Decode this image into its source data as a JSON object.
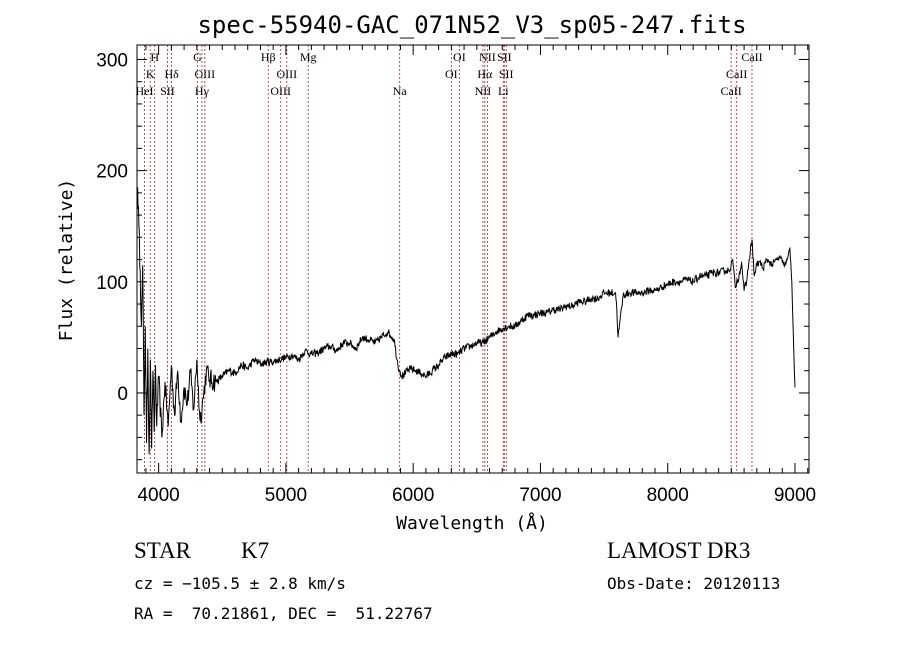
{
  "chart_data": {
    "type": "line",
    "title": "spec-55940-GAC_071N52_V3_sp05-247.fits",
    "xlabel": "Wavelength (Å)",
    "ylabel": "Flux (relative)",
    "xlim": [
      3830,
      9110
    ],
    "ylim": [
      -72,
      313
    ],
    "x_ticks": [
      4000,
      5000,
      6000,
      7000,
      8000,
      9000
    ],
    "y_ticks": [
      0,
      100,
      200,
      300
    ],
    "series": [
      {
        "name": "flux",
        "x": [
          3835,
          3845,
          3855,
          3865,
          3875,
          3885,
          3895,
          3905,
          3915,
          3925,
          3935,
          3945,
          3955,
          3965,
          3975,
          3985,
          4000,
          4025,
          4050,
          4075,
          4100,
          4125,
          4150,
          4175,
          4200,
          4225,
          4250,
          4275,
          4300,
          4325,
          4350,
          4375,
          4400,
          4450,
          4500,
          4550,
          4600,
          4650,
          4700,
          4750,
          4800,
          4850,
          4900,
          4950,
          5000,
          5050,
          5100,
          5150,
          5200,
          5250,
          5300,
          5350,
          5400,
          5450,
          5500,
          5550,
          5600,
          5650,
          5700,
          5750,
          5800,
          5850,
          5880,
          5895,
          5910,
          5940,
          5980,
          6020,
          6060,
          6100,
          6150,
          6200,
          6250,
          6300,
          6350,
          6400,
          6450,
          6500,
          6550,
          6600,
          6650,
          6700,
          6750,
          6800,
          6850,
          6900,
          6950,
          7000,
          7050,
          7100,
          7150,
          7200,
          7250,
          7300,
          7350,
          7400,
          7450,
          7500,
          7550,
          7590,
          7600,
          7610,
          7650,
          7700,
          7750,
          7800,
          7850,
          7900,
          7950,
          8000,
          8050,
          8100,
          8150,
          8200,
          8250,
          8300,
          8350,
          8400,
          8450,
          8480,
          8498,
          8510,
          8530,
          8542,
          8560,
          8580,
          8600,
          8620,
          8640,
          8662,
          8680,
          8700,
          8720,
          8750,
          8780,
          8800,
          8820,
          8840,
          8860,
          8880,
          8900,
          8920,
          8940,
          8960,
          8975,
          8985,
          8995,
          9000
        ],
        "y": [
          185,
          150,
          110,
          60,
          115,
          -20,
          60,
          -45,
          40,
          -55,
          30,
          -50,
          20,
          -35,
          25,
          -30,
          15,
          -40,
          10,
          -30,
          25,
          -20,
          20,
          -25,
          5,
          -10,
          18,
          -15,
          30,
          -25,
          -5,
          20,
          12,
          10,
          15,
          20,
          18,
          25,
          22,
          30,
          26,
          28,
          28,
          30,
          32,
          34,
          30,
          38,
          35,
          36,
          40,
          42,
          38,
          45,
          45,
          40,
          50,
          48,
          45,
          50,
          55,
          48,
          25,
          20,
          15,
          18,
          22,
          20,
          18,
          15,
          20,
          25,
          32,
          35,
          35,
          40,
          42,
          45,
          45,
          50,
          55,
          58,
          60,
          60,
          65,
          70,
          70,
          72,
          72,
          75,
          75,
          78,
          78,
          82,
          82,
          85,
          85,
          90,
          90,
          90,
          75,
          50,
          88,
          90,
          90,
          90,
          92,
          92,
          95,
          98,
          100,
          100,
          102,
          100,
          105,
          105,
          108,
          108,
          110,
          110,
          115,
          120,
          95,
          100,
          105,
          118,
          92,
          100,
          120,
          138,
          105,
          115,
          118,
          112,
          120,
          118,
          115,
          118,
          120,
          122,
          118,
          115,
          120,
          130,
          100,
          60,
          20,
          5
        ]
      }
    ],
    "spectral_lines": [
      {
        "label": "H",
        "wavelength": 3969,
        "row": 1
      },
      {
        "label": "K",
        "wavelength": 3934,
        "row": 2
      },
      {
        "label": "HeI",
        "wavelength": 3889,
        "row": 3
      },
      {
        "label": "SII",
        "wavelength": 4069,
        "row": 3
      },
      {
        "label": "Hδ",
        "wavelength": 4102,
        "row": 2
      },
      {
        "label": "G",
        "wavelength": 4305,
        "row": 1
      },
      {
        "label": "OIII",
        "wavelength": 4363,
        "row": 2
      },
      {
        "label": "Hγ",
        "wavelength": 4340,
        "row": 3
      },
      {
        "label": "Hβ",
        "wavelength": 4861,
        "row": 1
      },
      {
        "label": "OIII",
        "wavelength": 5007,
        "row": 2
      },
      {
        "label": "OIII",
        "wavelength": 4959,
        "row": 3
      },
      {
        "label": "Mg",
        "wavelength": 5175,
        "row": 1
      },
      {
        "label": "Na",
        "wavelength": 5894,
        "row": 3
      },
      {
        "label": "OI",
        "wavelength": 6363,
        "row": 1
      },
      {
        "label": "OI",
        "wavelength": 6300,
        "row": 2
      },
      {
        "label": "NII",
        "wavelength": 6583,
        "row": 1
      },
      {
        "label": "SII",
        "wavelength": 6716,
        "row": 1
      },
      {
        "label": "Hα",
        "wavelength": 6563,
        "row": 2
      },
      {
        "label": "SII",
        "wavelength": 6731,
        "row": 2
      },
      {
        "label": "NII",
        "wavelength": 6548,
        "row": 3
      },
      {
        "label": "Li",
        "wavelength": 6708,
        "row": 3
      },
      {
        "label": "CaII",
        "wavelength": 8662,
        "row": 1
      },
      {
        "label": "CaII",
        "wavelength": 8542,
        "row": 2
      },
      {
        "label": "CaII",
        "wavelength": 8498,
        "row": 3
      }
    ]
  },
  "info": {
    "object_class": "STAR",
    "subclass": "K7",
    "cz": "cz = −105.5 ± 2.8 km/s",
    "coords": "RA =  70.21861, DEC =  51.22767",
    "survey": "LAMOST DR3",
    "obs_date": "Obs-Date: 20120113"
  },
  "colors": {
    "spectrum": "#000000",
    "line_marker": "#b22222",
    "axes": "#000000"
  }
}
